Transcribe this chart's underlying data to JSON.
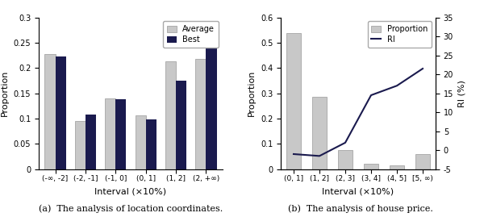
{
  "left": {
    "categories": [
      "(-∞, -2]",
      "(-2, -1]",
      "(-1, 0]",
      "(0, 1]",
      "(1, 2]",
      "(2, +∞)"
    ],
    "average": [
      0.228,
      0.095,
      0.14,
      0.106,
      0.213,
      0.218
    ],
    "best": [
      0.223,
      0.108,
      0.139,
      0.098,
      0.175,
      0.257
    ],
    "ylabel": "Proportion",
    "xlabel": "Interval (×10%)",
    "ylim": [
      0,
      0.3
    ],
    "yticks": [
      0,
      0.05,
      0.1,
      0.15,
      0.2,
      0.25,
      0.3
    ],
    "caption": "(a)  The analysis of location coordinates.",
    "avg_color": "#c8c8c8",
    "best_color": "#1a1a4e",
    "legend_labels": [
      "Average",
      "Best"
    ]
  },
  "right": {
    "categories": [
      "(0, 1]",
      "(1, 2]",
      "(2, 3]",
      "(3, 4]",
      "(4, 5]",
      "[5, ∞)"
    ],
    "proportion": [
      0.537,
      0.287,
      0.075,
      0.022,
      0.015,
      0.06
    ],
    "ri": [
      -1.0,
      -1.5,
      2.0,
      14.5,
      17.0,
      21.5
    ],
    "ylabel_left": "Proportion",
    "ylabel_right": "RI (%)",
    "xlabel": "Interval (×10%)",
    "ylim_left": [
      0,
      0.6
    ],
    "yticks_left": [
      0,
      0.1,
      0.2,
      0.3,
      0.4,
      0.5,
      0.6
    ],
    "ylim_right": [
      -5,
      35
    ],
    "yticks_right": [
      -5,
      0,
      5,
      10,
      15,
      20,
      25,
      30,
      35
    ],
    "caption": "(b)  The analysis of house price.",
    "bar_color": "#c8c8c8",
    "line_color": "#1a1a4e",
    "legend_labels": [
      "Proportion",
      "RI"
    ]
  }
}
